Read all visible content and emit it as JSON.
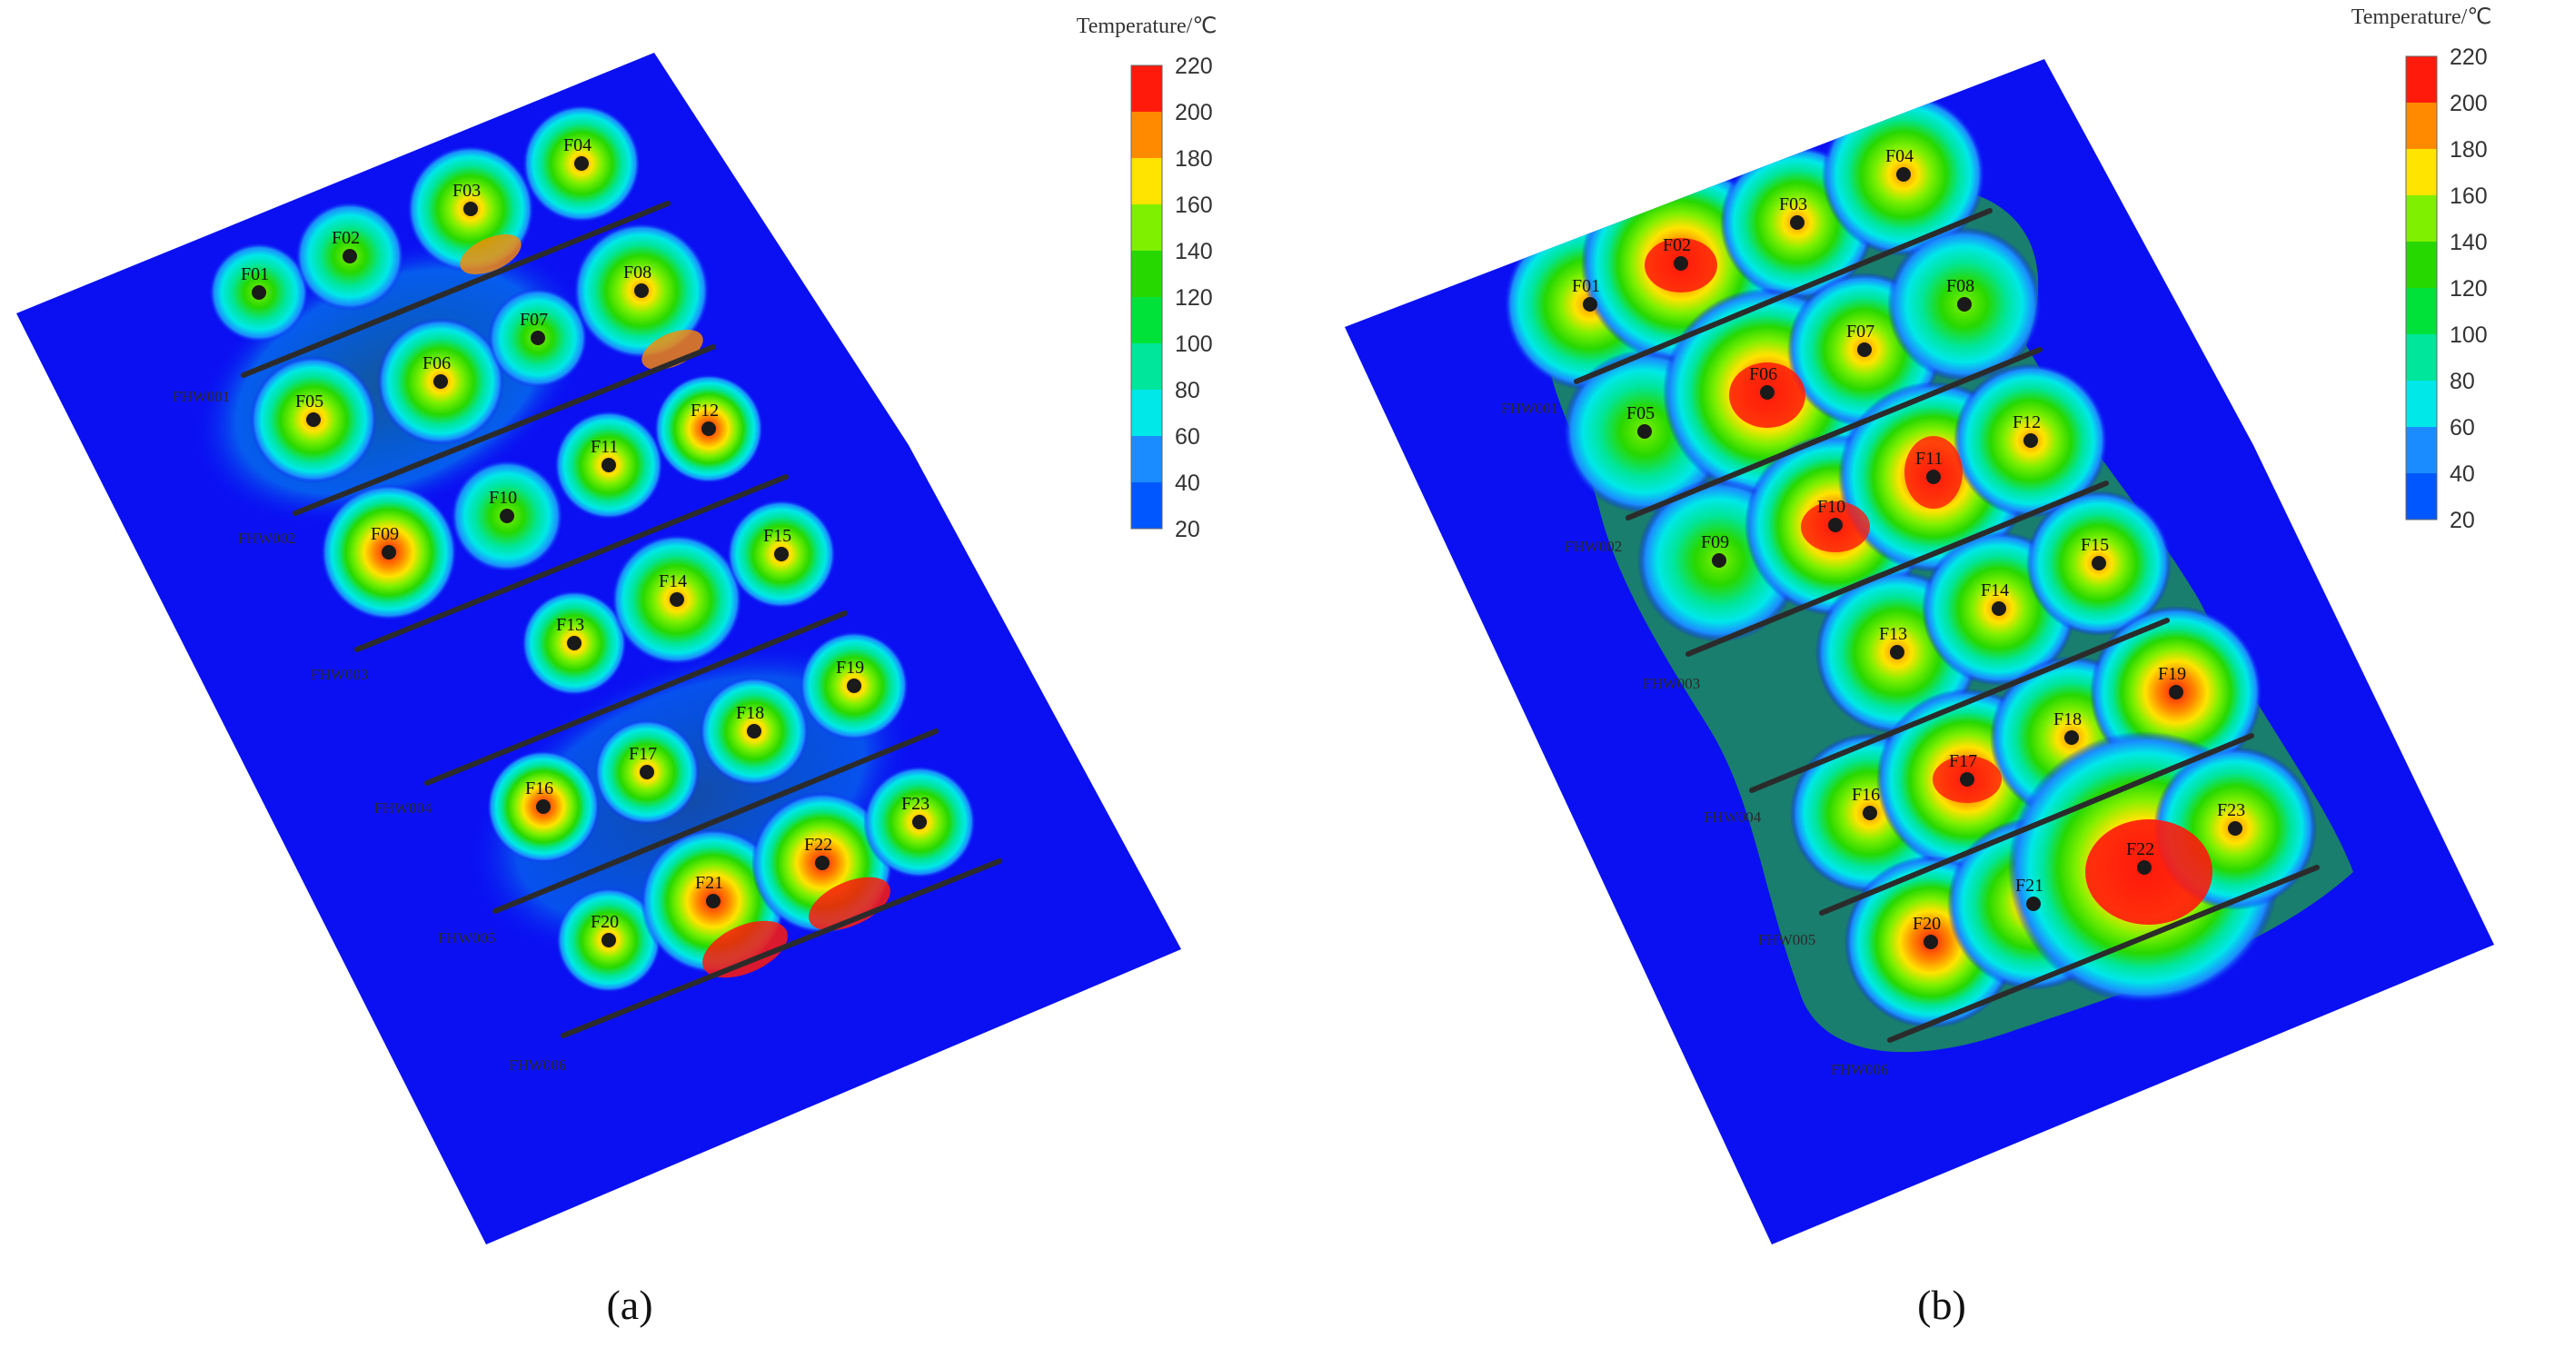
{
  "legend": {
    "title": "Temperature/℃",
    "ticks": [
      "220",
      "200",
      "180",
      "160",
      "140",
      "120",
      "100",
      "80",
      "60",
      "40",
      "20"
    ],
    "bands": [
      "#ff1a0c",
      "#ff8a00",
      "#ffe400",
      "#7ff000",
      "#27d800",
      "#00e23a",
      "#00e69a",
      "#00e8e8",
      "#1b8cff",
      "#0057ff",
      "#0a10f2"
    ]
  },
  "colors": {
    "background": "#0a10f2",
    "hot": "#ff1a0c",
    "warm": "#ff8a00",
    "yellow": "#ffe400",
    "green": "#2ad800",
    "cyan": "#00e8e8",
    "horizontal_well": "#2b2b2b"
  },
  "panels": [
    {
      "caption": "(a)",
      "wells": [
        "F01",
        "F02",
        "F03",
        "F04",
        "F05",
        "F06",
        "F07",
        "F08",
        "F09",
        "F10",
        "F11",
        "F12",
        "F13",
        "F14",
        "F15",
        "F16",
        "F17",
        "F18",
        "F19",
        "F20",
        "F21",
        "F22",
        "F23"
      ],
      "horizontal_wells": [
        "FHW001",
        "FHW002",
        "FHW003",
        "FHW004",
        "FHW005",
        "FHW006"
      ]
    },
    {
      "caption": "(b)",
      "wells": [
        "F01",
        "F02",
        "F03",
        "F04",
        "F05",
        "F06",
        "F07",
        "F08",
        "F09",
        "F10",
        "F11",
        "F12",
        "F13",
        "F14",
        "F15",
        "F16",
        "F17",
        "F18",
        "F19",
        "F20",
        "F21",
        "F22",
        "F23"
      ],
      "horizontal_wells": [
        "FHW001",
        "FHW002",
        "FHW003",
        "FHW004",
        "FHW005",
        "FHW006"
      ]
    }
  ]
}
